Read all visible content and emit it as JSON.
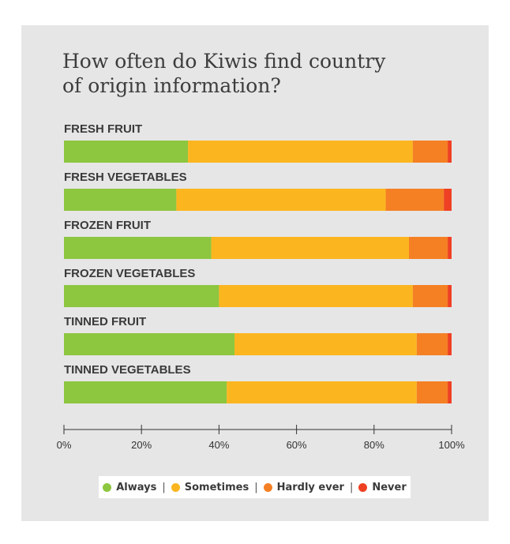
{
  "title_line1": "How often do Kiwis find country",
  "title_line2": "of origin information?",
  "chart_data": {
    "type": "bar",
    "orientation": "horizontal",
    "stacked": true,
    "categories": [
      "FRESH FRUIT",
      "FRESH VEGETABLES",
      "FROZEN FRUIT",
      "FROZEN VEGETABLES",
      "TINNED FRUIT",
      "TINNED VEGETABLES"
    ],
    "series": [
      {
        "name": "Always",
        "color": "#8dc63f",
        "values": [
          32,
          29,
          38,
          40,
          44,
          42
        ]
      },
      {
        "name": "Sometimes",
        "color": "#fbb61f",
        "values": [
          58,
          54,
          51,
          50,
          47,
          49
        ]
      },
      {
        "name": "Hardly ever",
        "color": "#f58024",
        "values": [
          9,
          15,
          10,
          9,
          8,
          8
        ]
      },
      {
        "name": "Never",
        "color": "#ee4123",
        "values": [
          1,
          2,
          1,
          1,
          1,
          1
        ]
      }
    ],
    "xlim": [
      0,
      100
    ],
    "xticks": [
      "0%",
      "20%",
      "40%",
      "60%",
      "80%",
      "100%"
    ],
    "legend_position": "bottom"
  },
  "legend": {
    "items": [
      {
        "label": "Always",
        "color": "#8dc63f"
      },
      {
        "label": "Sometimes",
        "color": "#fbb61f"
      },
      {
        "label": "Hardly ever",
        "color": "#f58024"
      },
      {
        "label": "Never",
        "color": "#ee4123"
      }
    ],
    "separator": "|"
  }
}
